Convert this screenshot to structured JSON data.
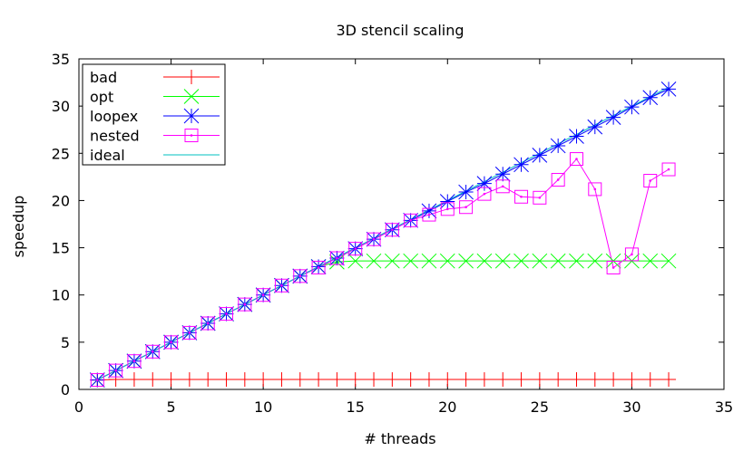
{
  "chart_data": {
    "type": "line",
    "title": "3D stencil scaling",
    "xlabel": "# threads",
    "ylabel": "speedup",
    "xlim": [
      0,
      35
    ],
    "ylim": [
      0,
      35
    ],
    "xticks": [
      0,
      5,
      10,
      15,
      20,
      25,
      30,
      35
    ],
    "yticks": [
      0,
      5,
      10,
      15,
      20,
      25,
      30,
      35
    ],
    "grid": false,
    "legend_position": "top-left",
    "x": [
      1,
      2,
      3,
      4,
      5,
      6,
      7,
      8,
      9,
      10,
      11,
      12,
      13,
      14,
      15,
      16,
      17,
      18,
      19,
      20,
      21,
      22,
      23,
      24,
      25,
      26,
      27,
      28,
      29,
      30,
      31,
      32
    ],
    "series": [
      {
        "name": "bad",
        "color": "#ff0000",
        "marker": "plus",
        "values": [
          1,
          1.05,
          1.05,
          1.05,
          1.05,
          1.05,
          1.05,
          1.05,
          1.05,
          1.05,
          1.05,
          1.05,
          1.05,
          1.05,
          1.05,
          1.05,
          1.05,
          1.05,
          1.05,
          1.05,
          1.05,
          1.05,
          1.05,
          1.05,
          1.05,
          1.05,
          1.05,
          1.05,
          1.05,
          1.05,
          1.05,
          1.05
        ]
      },
      {
        "name": "opt",
        "color": "#00ff00",
        "marker": "cross",
        "values": [
          1,
          2,
          3,
          4,
          5,
          6,
          7,
          8,
          9,
          10,
          11,
          12,
          13,
          13.5,
          13.6,
          13.6,
          13.6,
          13.6,
          13.6,
          13.6,
          13.6,
          13.6,
          13.6,
          13.6,
          13.6,
          13.6,
          13.6,
          13.6,
          13.6,
          13.6,
          13.6,
          13.6
        ]
      },
      {
        "name": "loopex",
        "color": "#0000ff",
        "marker": "star",
        "values": [
          1,
          2,
          3,
          4,
          5,
          6,
          7,
          8,
          9,
          10,
          11,
          12,
          13,
          13.9,
          14.9,
          15.9,
          16.9,
          17.9,
          18.9,
          19.9,
          20.9,
          21.8,
          22.8,
          23.8,
          24.8,
          25.8,
          26.8,
          27.8,
          28.8,
          29.9,
          30.9,
          31.8
        ]
      },
      {
        "name": "nested",
        "color": "#ff00ff",
        "marker": "square",
        "values": [
          1,
          2,
          3,
          4,
          5,
          6,
          7,
          8,
          9,
          10,
          11,
          12,
          12.9,
          13.9,
          14.9,
          15.9,
          16.9,
          17.9,
          18.5,
          19.1,
          19.3,
          20.7,
          21.5,
          20.4,
          20.3,
          22.2,
          24.4,
          21.2,
          12.9,
          14.3,
          22.1,
          23.3
        ]
      },
      {
        "name": "ideal",
        "color": "#00c0c0",
        "marker": "none",
        "values": [
          1,
          2,
          3,
          4,
          5,
          6,
          7,
          8,
          9,
          10,
          11,
          12,
          13,
          14,
          15,
          16,
          17,
          18,
          19,
          20,
          21,
          22,
          23,
          24,
          25,
          26,
          27,
          28,
          29,
          30,
          31,
          32
        ]
      }
    ]
  }
}
